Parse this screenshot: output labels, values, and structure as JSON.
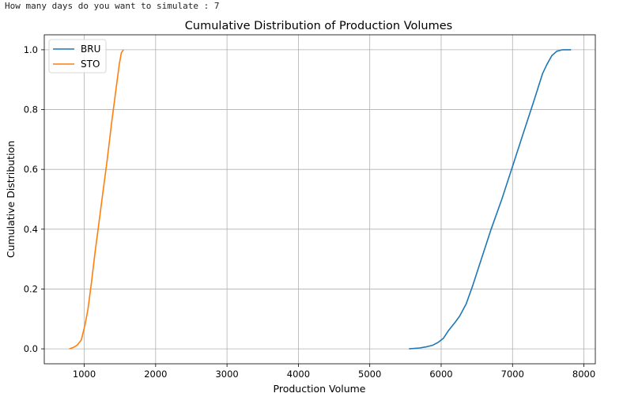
{
  "prompt": {
    "question": "How many days do you want to simulate : ",
    "answer": "7"
  },
  "colors": {
    "bru": "#1f77b4",
    "sto": "#ff7f0e",
    "grid": "#b0b0b0",
    "axis": "#000000"
  },
  "chart_data": {
    "type": "line",
    "title": "Cumulative Distribution of Production Volumes",
    "xlabel": "Production Volume",
    "ylabel": "Cumulative Distribution",
    "xlim": [
      440,
      8160
    ],
    "ylim": [
      -0.05,
      1.05
    ],
    "xticks": [
      1000,
      2000,
      3000,
      4000,
      5000,
      6000,
      7000,
      8000
    ],
    "yticks": [
      0.0,
      0.2,
      0.4,
      0.6,
      0.8,
      1.0
    ],
    "xtick_labels": [
      "1000",
      "2000",
      "3000",
      "4000",
      "5000",
      "6000",
      "7000",
      "8000"
    ],
    "ytick_labels": [
      "0.0",
      "0.2",
      "0.4",
      "0.6",
      "0.8",
      "1.0"
    ],
    "grid": true,
    "legend_position": "upper-left",
    "series": [
      {
        "name": "BRU",
        "color": "#1f77b4",
        "x": [
          5550,
          5700,
          5800,
          5880,
          5960,
          6030,
          6100,
          6200,
          6260,
          6350,
          6440,
          6550,
          6700,
          6850,
          7000,
          7150,
          7300,
          7420,
          7480,
          7550,
          7620,
          7700,
          7820
        ],
        "y": [
          0.0,
          0.003,
          0.007,
          0.012,
          0.022,
          0.035,
          0.06,
          0.09,
          0.11,
          0.15,
          0.21,
          0.29,
          0.4,
          0.5,
          0.61,
          0.72,
          0.83,
          0.92,
          0.95,
          0.98,
          0.995,
          1.0,
          1.0
        ]
      },
      {
        "name": "STO",
        "color": "#ff7f0e",
        "x": [
          790,
          850,
          900,
          960,
          1010,
          1050,
          1100,
          1150,
          1200,
          1260,
          1320,
          1380,
          1440,
          1490,
          1520,
          1550
        ],
        "y": [
          0.0,
          0.005,
          0.012,
          0.03,
          0.08,
          0.13,
          0.22,
          0.32,
          0.41,
          0.52,
          0.63,
          0.75,
          0.86,
          0.95,
          0.99,
          1.0
        ]
      }
    ]
  }
}
